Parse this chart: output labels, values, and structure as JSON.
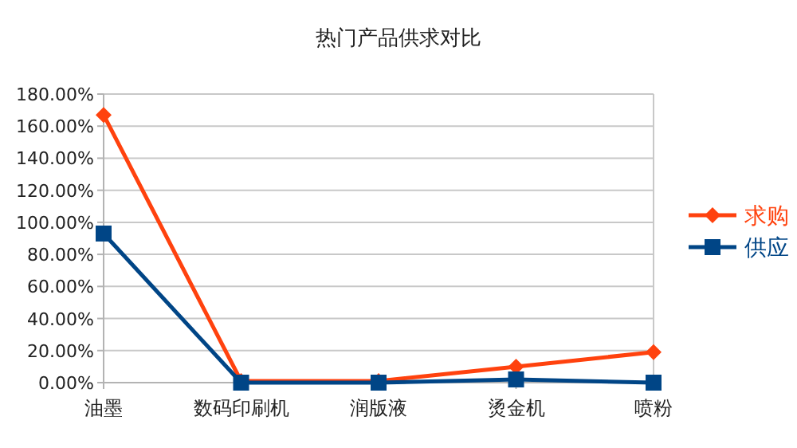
{
  "chart_data": {
    "type": "line",
    "title": "热门产品供求对比",
    "categories": [
      "油墨",
      "数码印刷机",
      "润版液",
      "烫金机",
      "喷粉"
    ],
    "series": [
      {
        "name": "求购",
        "color": "#ff420e",
        "marker": "diamond",
        "values": [
          167,
          1,
          1,
          10,
          19
        ]
      },
      {
        "name": "供应",
        "color": "#004586",
        "marker": "square",
        "values": [
          93,
          0,
          0,
          2,
          0
        ]
      }
    ],
    "ylim": [
      0,
      180
    ],
    "yticks": [
      {
        "value": 0,
        "label": "0.00%"
      },
      {
        "value": 20,
        "label": "20.00%"
      },
      {
        "value": 40,
        "label": "40.00%"
      },
      {
        "value": 60,
        "label": "60.00%"
      },
      {
        "value": 80,
        "label": "80.00%"
      },
      {
        "value": 100,
        "label": "100.00%"
      },
      {
        "value": 120,
        "label": "120.00%"
      },
      {
        "value": 140,
        "label": "140.00%"
      },
      {
        "value": 160,
        "label": "160.00%"
      },
      {
        "value": 180,
        "label": "180.00%"
      }
    ],
    "grid": "y",
    "legend": "right",
    "line_style": "solid"
  }
}
